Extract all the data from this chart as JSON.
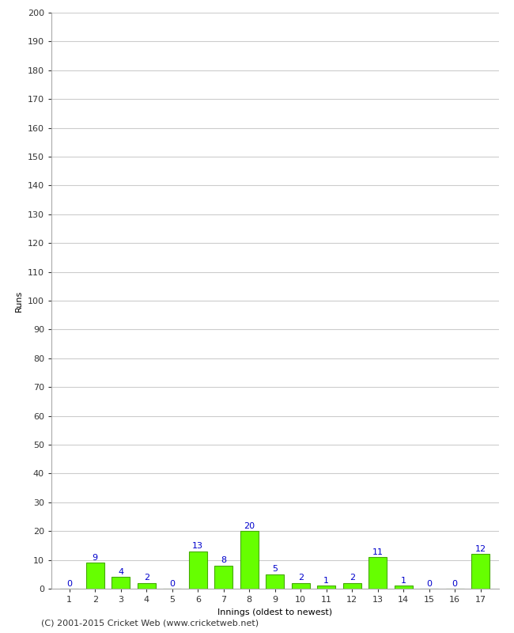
{
  "innings": [
    1,
    2,
    3,
    4,
    5,
    6,
    7,
    8,
    9,
    10,
    11,
    12,
    13,
    14,
    15,
    16,
    17
  ],
  "runs": [
    0,
    9,
    4,
    2,
    0,
    13,
    8,
    20,
    5,
    2,
    1,
    2,
    11,
    1,
    0,
    0,
    12
  ],
  "bar_color": "#66ff00",
  "bar_edge_color": "#44aa00",
  "label_color": "#0000cc",
  "xlabel": "Innings (oldest to newest)",
  "ylabel": "Runs",
  "ylim": [
    0,
    200
  ],
  "yticks": [
    0,
    10,
    20,
    30,
    40,
    50,
    60,
    70,
    80,
    90,
    100,
    110,
    120,
    130,
    140,
    150,
    160,
    170,
    180,
    190,
    200
  ],
  "footer": "(C) 2001-2015 Cricket Web (www.cricketweb.net)",
  "background_color": "#ffffff",
  "grid_color": "#cccccc",
  "axis_label_fontsize": 8,
  "tick_fontsize": 8,
  "bar_label_fontsize": 8,
  "footer_fontsize": 8
}
